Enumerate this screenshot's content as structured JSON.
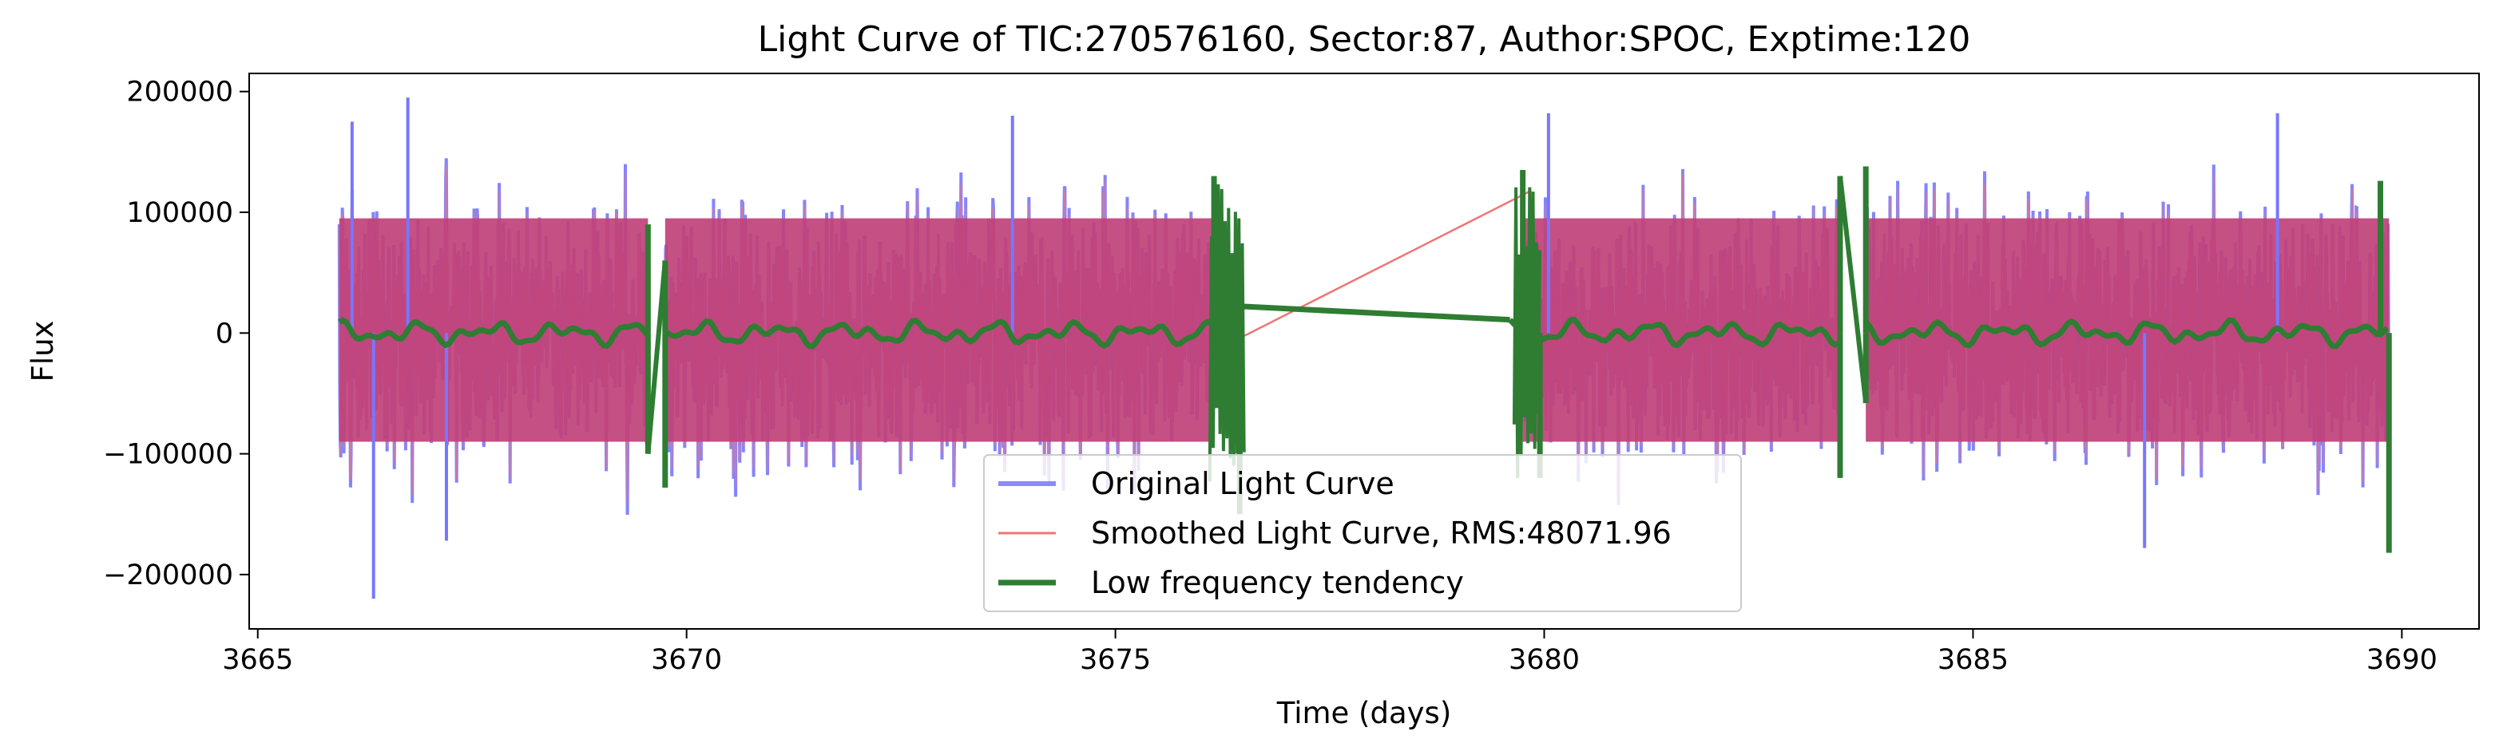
{
  "chart_data": {
    "type": "line",
    "title": "Light Curve of TIC:270576160, Sector:87, Author:SPOC, Exptime:120",
    "xlabel": "Time (days)",
    "ylabel": "Flux",
    "xlim": [
      3664.9,
      3690.9
    ],
    "ylim": [
      -245000,
      215000
    ],
    "xticks": [
      3665,
      3670,
      3675,
      3680,
      3685,
      3690
    ],
    "xtick_labels": [
      "3665",
      "3670",
      "3675",
      "3680",
      "3685",
      "3690"
    ],
    "yticks": [
      200000,
      100000,
      0,
      -100000,
      -200000
    ],
    "ytick_labels": [
      "200000",
      "100000",
      "0",
      "−100000",
      "−200000"
    ],
    "grid": false,
    "legend_position": "lower center",
    "segments": [
      [
        3665.95,
        3669.55
      ],
      [
        3669.75,
        3676.15
      ],
      [
        3679.75,
        3683.45
      ],
      [
        3683.75,
        3689.85
      ]
    ],
    "series": [
      {
        "name": "Original Light Curve",
        "color": "#7777ff",
        "style": "dense oscillating light curve",
        "amplitude": 110000,
        "extremes": [
          {
            "x": 3666.35,
            "y": -220000
          },
          {
            "x": 3666.75,
            "y": 195000
          },
          {
            "x": 3666.1,
            "y": 175000
          },
          {
            "x": 3673.8,
            "y": 180000
          },
          {
            "x": 3680.05,
            "y": 182000
          },
          {
            "x": 3688.55,
            "y": 182000
          },
          {
            "x": 3687.0,
            "y": -178000
          },
          {
            "x": 3667.2,
            "y": -172000
          }
        ]
      },
      {
        "name": "Smoothed Light Curve, RMS:48071.96",
        "color": "#f07575",
        "style": "smoothed curve with gap-bridging line",
        "bridge": [
          {
            "x": 3676.15,
            "y": -15000
          },
          {
            "x": 3679.85,
            "y": 118000
          }
        ]
      },
      {
        "name": "Low frequency tendency",
        "color": "#2e7d32",
        "style": "low frequency trend",
        "trend_level": 0,
        "gap_points": [
          {
            "x": 3676.5,
            "y": 22000
          },
          {
            "x": 3679.6,
            "y": 11000
          }
        ],
        "edge_spikes": [
          {
            "x": 3669.55,
            "y": 90000
          },
          {
            "x": 3669.55,
            "y": -100000
          },
          {
            "x": 3669.75,
            "y": 60000
          },
          {
            "x": 3669.75,
            "y": -128000
          },
          {
            "x": 3676.15,
            "y": 130000
          },
          {
            "x": 3676.45,
            "y": -150000
          },
          {
            "x": 3679.75,
            "y": 135000
          },
          {
            "x": 3679.95,
            "y": -120000
          },
          {
            "x": 3683.45,
            "y": 130000
          },
          {
            "x": 3683.45,
            "y": -120000
          },
          {
            "x": 3683.75,
            "y": 138000
          },
          {
            "x": 3683.75,
            "y": -58000
          },
          {
            "x": 3689.75,
            "y": 126000
          },
          {
            "x": 3689.85,
            "y": -182000
          }
        ]
      }
    ]
  }
}
